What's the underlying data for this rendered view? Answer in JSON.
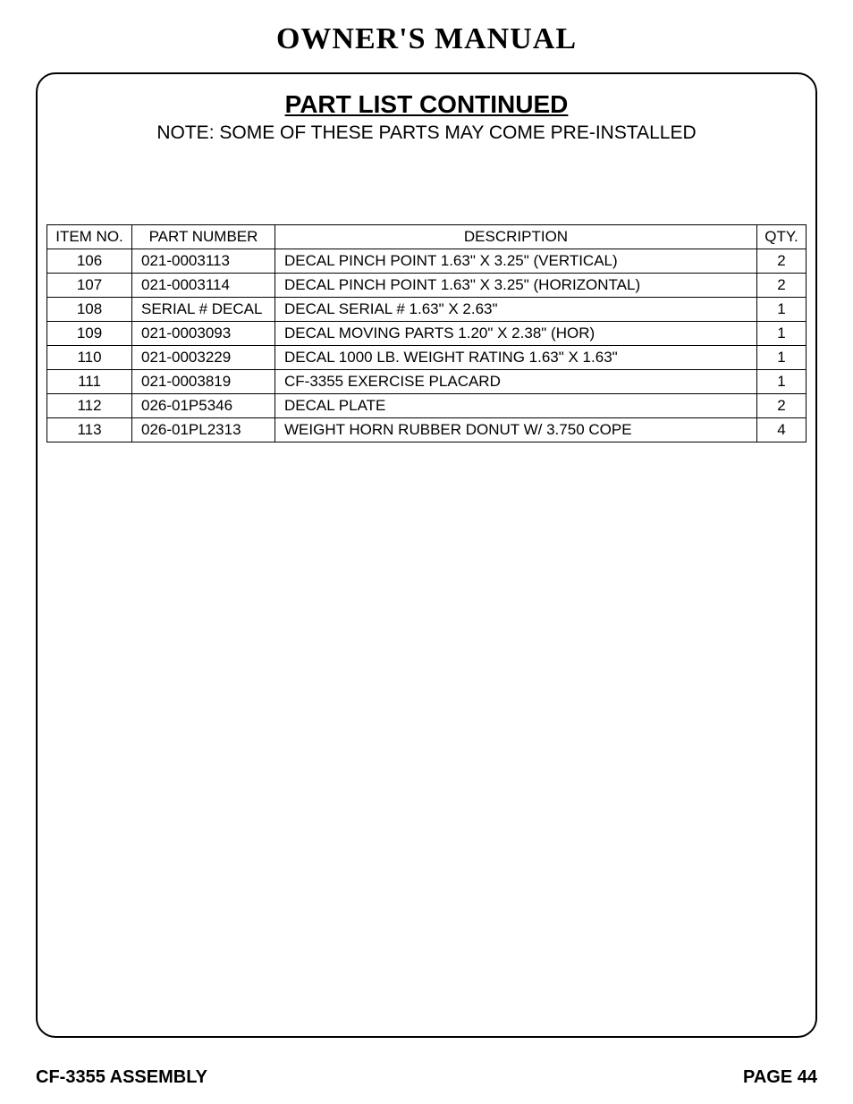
{
  "document": {
    "title": "OWNER'S MANUAL",
    "section_title": "PART LIST CONTINUED",
    "note": "NOTE: SOME OF THESE PARTS MAY COME PRE-INSTALLED"
  },
  "table": {
    "columns": [
      "ITEM NO.",
      "PART NUMBER",
      "DESCRIPTION",
      "QTY."
    ],
    "rows": [
      {
        "item": "106",
        "part": "021-0003113",
        "desc": "DECAL PINCH POINT 1.63\" X 3.25\" (VERTICAL)",
        "qty": "2"
      },
      {
        "item": "107",
        "part": "021-0003114",
        "desc": "DECAL PINCH POINT 1.63\" X 3.25\" (HORIZONTAL)",
        "qty": "2"
      },
      {
        "item": "108",
        "part": "SERIAL # DECAL",
        "desc": "DECAL SERIAL # 1.63\" X 2.63\"",
        "qty": "1"
      },
      {
        "item": "109",
        "part": "021-0003093",
        "desc": "DECAL MOVING PARTS 1.20\" X 2.38\" (HOR)",
        "qty": "1"
      },
      {
        "item": "110",
        "part": "021-0003229",
        "desc": "DECAL 1000 LB. WEIGHT RATING 1.63\" X 1.63\"",
        "qty": "1"
      },
      {
        "item": "111",
        "part": "021-0003819",
        "desc": "CF-3355 EXERCISE PLACARD",
        "qty": "1"
      },
      {
        "item": "112",
        "part": "026-01P5346",
        "desc": "DECAL PLATE",
        "qty": "2"
      },
      {
        "item": "113",
        "part": "026-01PL2313",
        "desc": "WEIGHT HORN RUBBER DONUT W/ 3.750 COPE",
        "qty": "4"
      }
    ]
  },
  "footer": {
    "left": "CF-3355 ASSEMBLY",
    "right": "PAGE 44"
  }
}
